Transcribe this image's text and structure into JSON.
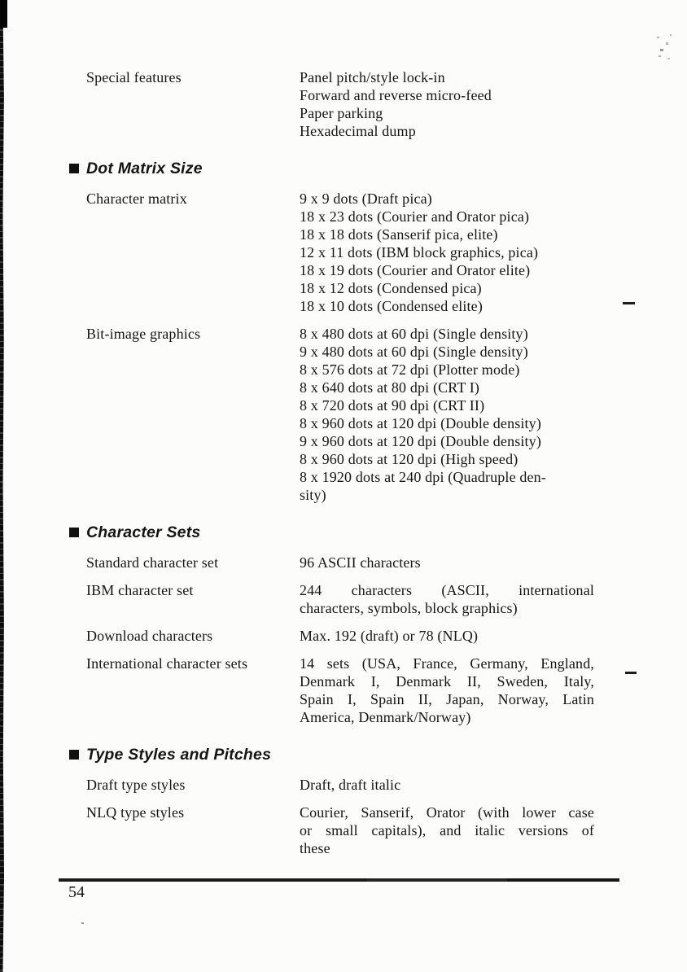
{
  "page": {
    "page_number": "54",
    "ink_color": "#151515",
    "paper_color": "#fcfcfb"
  },
  "document": {
    "sections": [
      {
        "title": "",
        "rows": [
          {
            "term": "Special features",
            "lines": [
              "Panel pitch/style lock-in",
              "Forward and reverse micro-feed",
              "Paper parking",
              "Hexadecimal dump"
            ]
          }
        ]
      },
      {
        "title": "Dot Matrix Size",
        "rows": [
          {
            "term": "Character matrix",
            "lines": [
              "9 x 9 dots (Draft pica)",
              "18 x 23 dots (Courier and Orator pica)",
              "18 x 18 dots (Sanserif pica, elite)",
              "12 x 11 dots (IBM block graphics, pica)",
              "18 x 19 dots (Courier and Orator elite)",
              "18 x 12 dots (Condensed pica)",
              "18 x 10 dots (Condensed elite)"
            ]
          },
          {
            "term": "Bit-image graphics",
            "lines": [
              "8 x 480 dots at 60 dpi (Single density)",
              "9 x 480 dots at 60 dpi (Single density)",
              "8 x 576 dots at 72 dpi (Plotter mode)",
              "8 x 640 dots at 80 dpi (CRT I)",
              "8 x 720 dots at 90 dpi (CRT II)",
              "8 x 960 dots at 120 dpi (Double density)",
              "9 x 960 dots at 120 dpi (Double density)",
              "8 x 960 dots at 120 dpi (High speed)",
              "8 x 1920 dots at 240 dpi (Quadruple den-",
              "sity)"
            ]
          }
        ]
      },
      {
        "title": "Character Sets",
        "rows": [
          {
            "term": "Standard character set",
            "lines": [
              "96 ASCII characters"
            ]
          },
          {
            "term": "IBM character set",
            "justify": true,
            "lines": [
              "244 characters (ASCII, international",
              "characters, symbols, block graphics)"
            ]
          },
          {
            "term": "Download characters",
            "lines": [
              "Max. 192 (draft) or 78 (NLQ)"
            ]
          },
          {
            "term": "International character sets",
            "justify": true,
            "lines": [
              "14 sets (USA, France, Germany, England,",
              "Denmark I, Denmark II, Sweden, Italy,",
              "Spain I, Spain II, Japan, Norway, Latin",
              "America, Denmark/Norway)"
            ]
          }
        ]
      },
      {
        "title": "Type Styles and Pitches",
        "rows": [
          {
            "term": "Draft type styles",
            "lines": [
              "Draft, draft italic"
            ]
          },
          {
            "term": "NLQ type styles",
            "justify": true,
            "lines": [
              "Courier, Sanserif, Orator (with lower case",
              "or small capitals), and italic versions of",
              "these"
            ]
          }
        ]
      }
    ]
  },
  "artifacts": {
    "margin_marks": [
      "-",
      "-"
    ],
    "description": "scan noise speckles top-right, binding shadow left edge"
  }
}
